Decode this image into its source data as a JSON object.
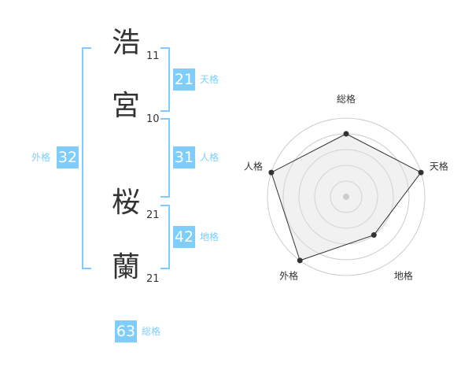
{
  "name": {
    "chars": [
      {
        "char": "浩",
        "strokes": "11"
      },
      {
        "char": "宮",
        "strokes": "10"
      },
      {
        "char": "桜",
        "strokes": "21"
      },
      {
        "char": "蘭",
        "strokes": "21"
      }
    ]
  },
  "kaku": {
    "tenkaku": {
      "value": "21",
      "label": "天格"
    },
    "jinkaku": {
      "value": "31",
      "label": "人格"
    },
    "chikaku": {
      "value": "42",
      "label": "地格"
    },
    "gaikaku": {
      "value": "32",
      "label": "外格"
    },
    "soukaku": {
      "value": "63",
      "label": "総格"
    }
  },
  "colors": {
    "accent": "#7fcdfb",
    "text": "#333333"
  },
  "chart_data": {
    "type": "radar",
    "categories": [
      "総格",
      "天格",
      "地格",
      "外格",
      "人格"
    ],
    "values": [
      4,
      5,
      3,
      5,
      5
    ],
    "range": [
      0,
      5
    ],
    "rings": 5
  }
}
